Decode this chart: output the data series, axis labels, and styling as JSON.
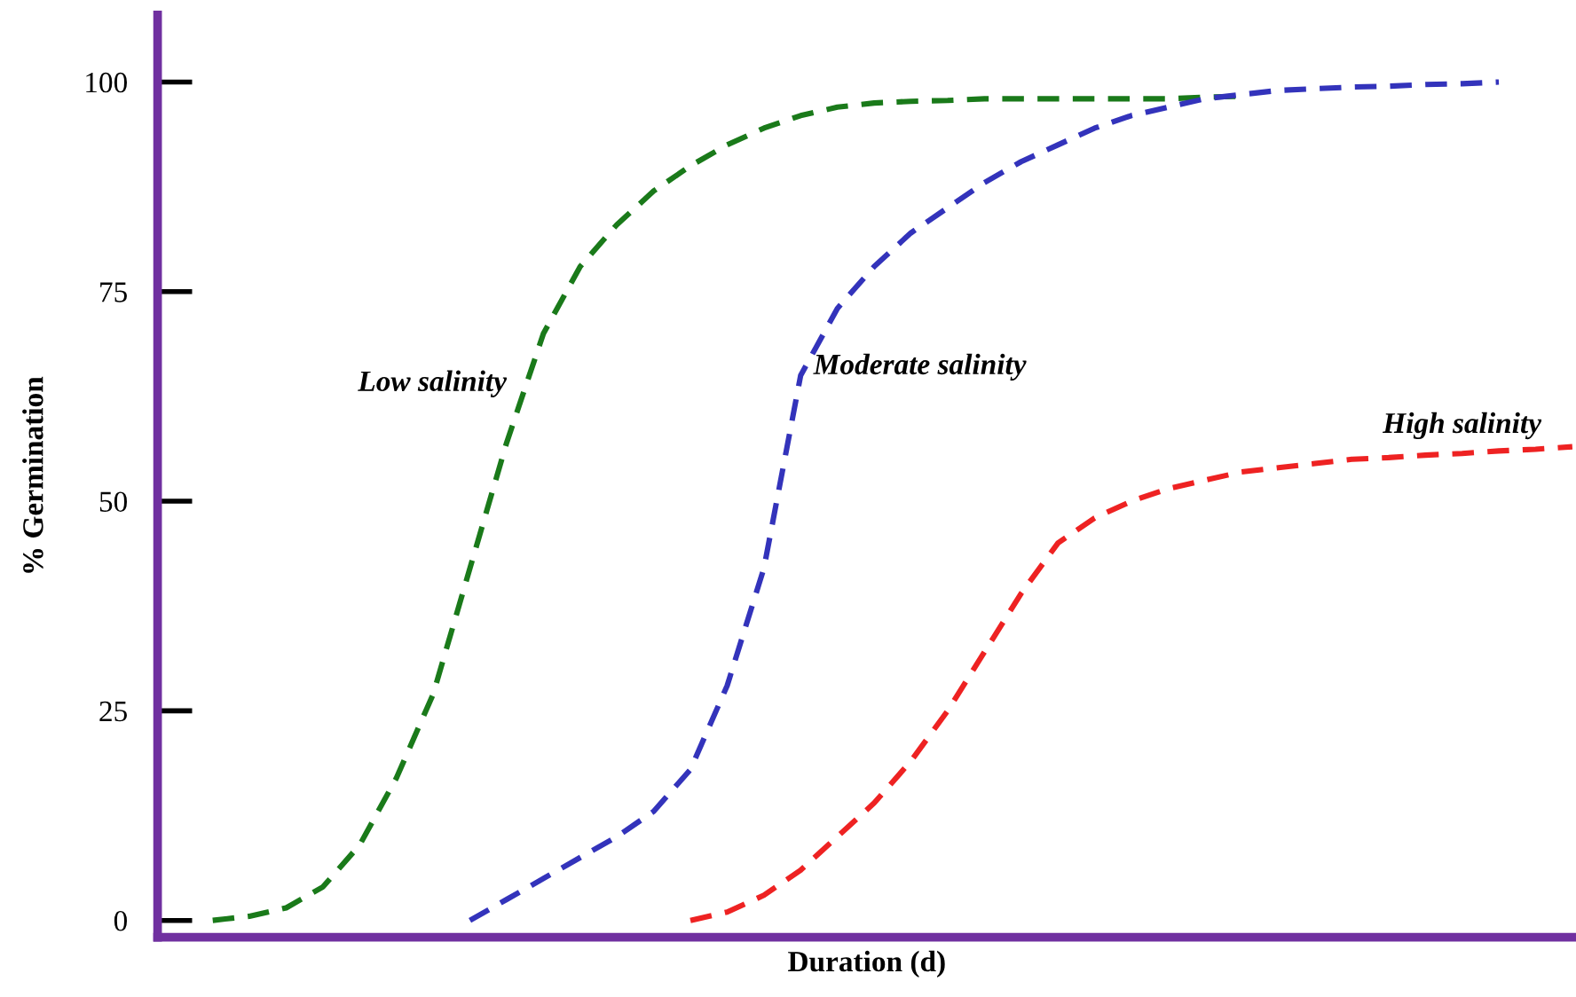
{
  "chart_data": {
    "type": "line",
    "xlabel": "Duration (d)",
    "ylabel": "% Germination",
    "categories": [
      null,
      null,
      null,
      null,
      null,
      null,
      null,
      null,
      null,
      null,
      null,
      null,
      null,
      null,
      null,
      null,
      null,
      null,
      null,
      null,
      null,
      null,
      null,
      null,
      null,
      null,
      null,
      null,
      null,
      null,
      null,
      null,
      null,
      null,
      null,
      null,
      null,
      null,
      null
    ],
    "series": [
      {
        "name": "Low salinity",
        "color": "#1a7a1a",
        "values": [
          null,
          0,
          0.5,
          1.5,
          4,
          9,
          17,
          27,
          42,
          57,
          70,
          78,
          83,
          87,
          90,
          92.5,
          94.5,
          96,
          97,
          97.5,
          97.7,
          97.8,
          98,
          98,
          98,
          98,
          98,
          98,
          98.2,
          98.3,
          null,
          null,
          null,
          null,
          null,
          null,
          null,
          null,
          null
        ]
      },
      {
        "name": "Moderate salinity",
        "color": "#3333bb",
        "values": [
          null,
          null,
          null,
          null,
          null,
          null,
          null,
          null,
          0,
          2.5,
          5,
          7.5,
          10,
          13,
          18,
          28,
          42,
          65,
          73,
          78,
          82,
          85,
          88,
          90.5,
          92.5,
          94.5,
          96,
          97,
          98,
          98.5,
          99,
          99.2,
          99.4,
          99.5,
          99.7,
          99.8,
          100,
          null,
          null
        ]
      },
      {
        "name": "High salinity",
        "color": "#ee2222",
        "values": [
          null,
          null,
          null,
          null,
          null,
          null,
          null,
          null,
          null,
          null,
          null,
          null,
          null,
          null,
          0,
          1,
          3,
          6,
          10,
          14,
          19,
          25,
          32,
          39,
          45,
          48,
          50,
          51.5,
          52.5,
          53.5,
          54,
          54.5,
          55,
          55.2,
          55.5,
          55.7,
          56,
          56.2,
          56.5
        ]
      }
    ],
    "ylim": [
      -2,
      108
    ],
    "yticks": [
      0,
      25,
      50,
      75,
      100
    ],
    "grid": false,
    "legend": false,
    "line_style": "dashed",
    "marker": "none"
  }
}
